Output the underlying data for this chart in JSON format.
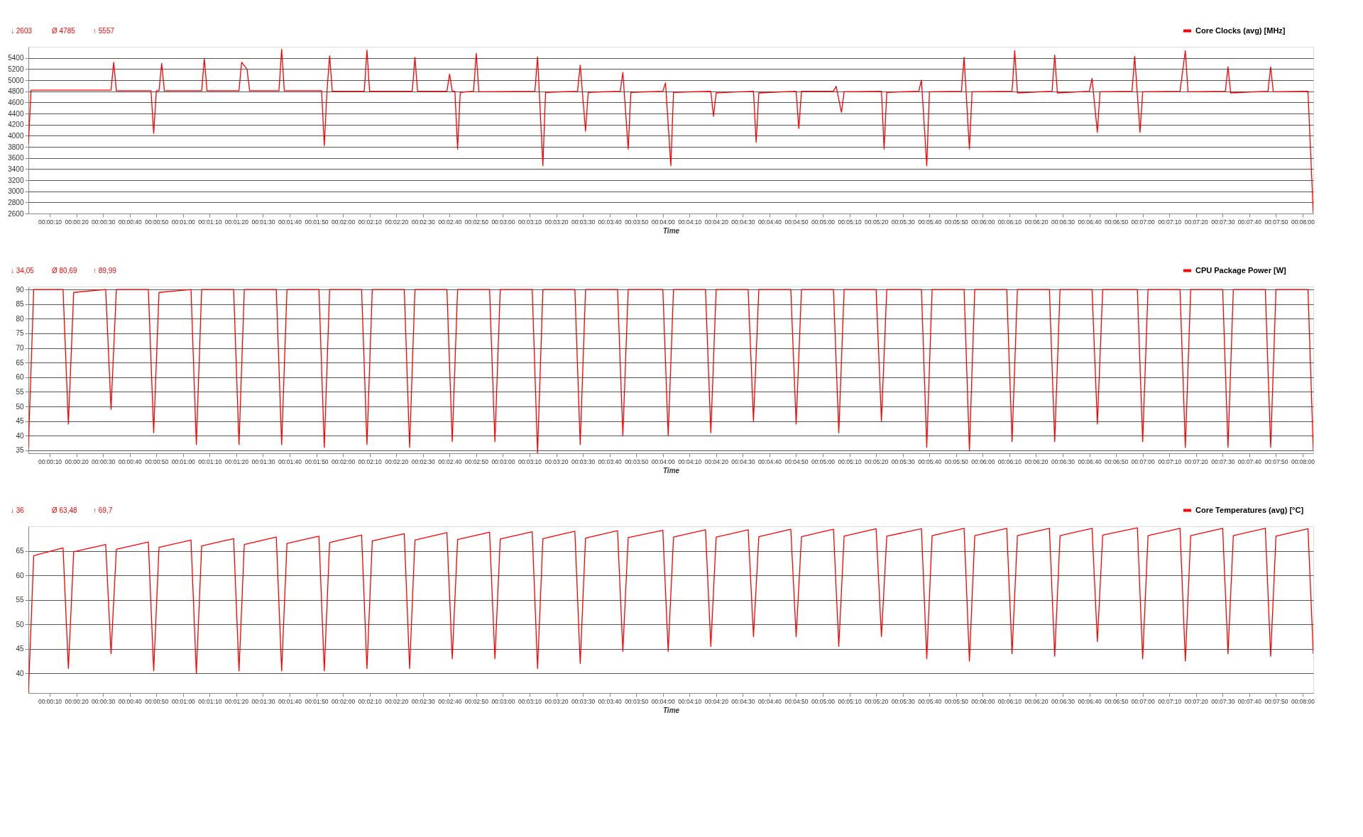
{
  "chart_data": [
    {
      "type": "line",
      "xlabel": "Time",
      "annotations": [
        "↓ 2603",
        "Ø 4785",
        "↑ 5557"
      ],
      "legend": "top right",
      "grid": "y",
      "xlim": [
        2,
        484
      ],
      "ylim": [
        2600,
        5600
      ],
      "yticks": [
        2600,
        2800,
        3000,
        3200,
        3400,
        3600,
        3800,
        4000,
        4200,
        4400,
        4600,
        4800,
        5000,
        5200,
        5400
      ],
      "xticks": [
        {
          "value": 10,
          "label": "00:00:10"
        },
        {
          "value": 20,
          "label": "00:00:20"
        },
        {
          "value": 30,
          "label": "00:00:30"
        },
        {
          "value": 40,
          "label": "00:00:40"
        },
        {
          "value": 50,
          "label": "00:00:50"
        },
        {
          "value": 60,
          "label": "00:01:00"
        },
        {
          "value": 70,
          "label": "00:01:10"
        },
        {
          "value": 80,
          "label": "00:01:20"
        },
        {
          "value": 90,
          "label": "00:01:30"
        },
        {
          "value": 100,
          "label": "00:01:40"
        },
        {
          "value": 110,
          "label": "00:01:50"
        },
        {
          "value": 120,
          "label": "00:02:00"
        },
        {
          "value": 130,
          "label": "00:02:10"
        },
        {
          "value": 140,
          "label": "00:02:20"
        },
        {
          "value": 150,
          "label": "00:02:30"
        },
        {
          "value": 160,
          "label": "00:02:40"
        },
        {
          "value": 170,
          "label": "00:02:50"
        },
        {
          "value": 180,
          "label": "00:03:00"
        },
        {
          "value": 190,
          "label": "00:03:10"
        },
        {
          "value": 200,
          "label": "00:03:20"
        },
        {
          "value": 210,
          "label": "00:03:30"
        },
        {
          "value": 220,
          "label": "00:03:40"
        },
        {
          "value": 230,
          "label": "00:03:50"
        },
        {
          "value": 240,
          "label": "00:04:00"
        },
        {
          "value": 250,
          "label": "00:04:10"
        },
        {
          "value": 260,
          "label": "00:04:20"
        },
        {
          "value": 270,
          "label": "00:04:30"
        },
        {
          "value": 280,
          "label": "00:04:40"
        },
        {
          "value": 290,
          "label": "00:04:50"
        },
        {
          "value": 300,
          "label": "00:05:00"
        },
        {
          "value": 310,
          "label": "00:05:10"
        },
        {
          "value": 320,
          "label": "00:05:20"
        },
        {
          "value": 330,
          "label": "00:05:30"
        },
        {
          "value": 340,
          "label": "00:05:40"
        },
        {
          "value": 350,
          "label": "00:05:50"
        },
        {
          "value": 360,
          "label": "00:06:00"
        },
        {
          "value": 370,
          "label": "00:06:10"
        },
        {
          "value": 380,
          "label": "00:06:20"
        },
        {
          "value": 390,
          "label": "00:06:30"
        },
        {
          "value": 400,
          "label": "00:06:40"
        },
        {
          "value": 410,
          "label": "00:06:50"
        },
        {
          "value": 420,
          "label": "00:07:00"
        },
        {
          "value": 430,
          "label": "00:07:10"
        },
        {
          "value": 440,
          "label": "00:07:20"
        },
        {
          "value": 450,
          "label": "00:07:30"
        },
        {
          "value": 460,
          "label": "00:07:40"
        },
        {
          "value": 470,
          "label": "00:07:50"
        },
        {
          "value": 480,
          "label": "00:08:00"
        }
      ],
      "x": [
        2,
        3,
        33,
        34,
        35,
        48,
        49,
        50,
        51,
        52,
        53,
        67,
        68,
        69,
        81,
        82,
        84,
        85,
        96,
        97,
        98,
        112,
        113,
        114,
        115,
        116,
        128,
        129,
        130,
        146,
        147,
        148,
        159,
        160,
        161,
        162,
        163,
        164,
        169,
        170,
        171,
        192,
        193,
        195,
        196,
        208,
        209,
        211,
        212,
        224,
        225,
        227,
        228,
        240,
        241,
        243,
        244,
        258,
        259,
        260,
        274,
        275,
        276,
        290,
        291,
        292,
        304,
        305,
        307,
        308,
        322,
        323,
        324,
        336,
        337,
        339,
        340,
        352,
        353,
        355,
        356,
        371,
        372,
        373,
        386,
        387,
        388,
        400,
        401,
        403,
        404,
        416,
        417,
        419,
        420,
        434,
        436,
        437,
        451,
        452,
        453,
        467,
        468,
        469,
        482,
        484
      ],
      "series": [
        {
          "name": "Core Clocks (avg) [MHz]",
          "color": "#ff0000",
          "values": [
            3850,
            4820,
            4820,
            5320,
            4810,
            4810,
            4040,
            4810,
            4810,
            5300,
            4810,
            4810,
            5390,
            4810,
            4810,
            5320,
            5200,
            4810,
            4810,
            5557,
            4810,
            4810,
            3820,
            4800,
            5440,
            4800,
            4800,
            5540,
            4800,
            4800,
            5410,
            4800,
            4800,
            5110,
            4800,
            4800,
            3760,
            4780,
            4800,
            5480,
            4790,
            4800,
            5420,
            3460,
            4780,
            4800,
            5270,
            4080,
            4780,
            4800,
            5140,
            3760,
            4780,
            4800,
            4950,
            3460,
            4780,
            4800,
            4350,
            4770,
            4800,
            3880,
            4770,
            4800,
            4130,
            4800,
            4800,
            4890,
            4420,
            4790,
            4800,
            3760,
            4780,
            4800,
            5000,
            3460,
            4790,
            4800,
            5410,
            3760,
            4790,
            4800,
            5530,
            4770,
            4800,
            5450,
            4770,
            4800,
            5030,
            4060,
            4790,
            4800,
            5430,
            4060,
            4790,
            4800,
            5530,
            4790,
            4800,
            5240,
            4770,
            4800,
            5240,
            4790,
            4800,
            2603
          ]
        }
      ]
    },
    {
      "type": "line",
      "xlabel": "Time",
      "annotations": [
        "↓ 34,05",
        "Ø 80,69",
        "↑ 89,99"
      ],
      "legend": "top right",
      "grid": "y",
      "xlim": [
        2,
        484
      ],
      "ylim": [
        34,
        91
      ],
      "yticks": [
        35,
        40,
        45,
        50,
        55,
        60,
        65,
        70,
        75,
        80,
        85,
        90
      ],
      "xticks": [
        {
          "value": 10,
          "label": "00:00:10"
        },
        {
          "value": 20,
          "label": "00:00:20"
        },
        {
          "value": 30,
          "label": "00:00:30"
        },
        {
          "value": 40,
          "label": "00:00:40"
        },
        {
          "value": 50,
          "label": "00:00:50"
        },
        {
          "value": 60,
          "label": "00:01:00"
        },
        {
          "value": 70,
          "label": "00:01:10"
        },
        {
          "value": 80,
          "label": "00:01:20"
        },
        {
          "value": 90,
          "label": "00:01:30"
        },
        {
          "value": 100,
          "label": "00:01:40"
        },
        {
          "value": 110,
          "label": "00:01:50"
        },
        {
          "value": 120,
          "label": "00:02:00"
        },
        {
          "value": 130,
          "label": "00:02:10"
        },
        {
          "value": 140,
          "label": "00:02:20"
        },
        {
          "value": 150,
          "label": "00:02:30"
        },
        {
          "value": 160,
          "label": "00:02:40"
        },
        {
          "value": 170,
          "label": "00:02:50"
        },
        {
          "value": 180,
          "label": "00:03:00"
        },
        {
          "value": 190,
          "label": "00:03:10"
        },
        {
          "value": 200,
          "label": "00:03:20"
        },
        {
          "value": 210,
          "label": "00:03:30"
        },
        {
          "value": 220,
          "label": "00:03:40"
        },
        {
          "value": 230,
          "label": "00:03:50"
        },
        {
          "value": 240,
          "label": "00:04:00"
        },
        {
          "value": 250,
          "label": "00:04:10"
        },
        {
          "value": 260,
          "label": "00:04:20"
        },
        {
          "value": 270,
          "label": "00:04:30"
        },
        {
          "value": 280,
          "label": "00:04:40"
        },
        {
          "value": 290,
          "label": "00:04:50"
        },
        {
          "value": 300,
          "label": "00:05:00"
        },
        {
          "value": 310,
          "label": "00:05:10"
        },
        {
          "value": 320,
          "label": "00:05:20"
        },
        {
          "value": 330,
          "label": "00:05:30"
        },
        {
          "value": 340,
          "label": "00:05:40"
        },
        {
          "value": 350,
          "label": "00:05:50"
        },
        {
          "value": 360,
          "label": "00:06:00"
        },
        {
          "value": 370,
          "label": "00:06:10"
        },
        {
          "value": 380,
          "label": "00:06:20"
        },
        {
          "value": 390,
          "label": "00:06:30"
        },
        {
          "value": 400,
          "label": "00:06:40"
        },
        {
          "value": 410,
          "label": "00:06:50"
        },
        {
          "value": 420,
          "label": "00:07:00"
        },
        {
          "value": 430,
          "label": "00:07:10"
        },
        {
          "value": 440,
          "label": "00:07:20"
        },
        {
          "value": 450,
          "label": "00:07:30"
        },
        {
          "value": 460,
          "label": "00:07:40"
        },
        {
          "value": 470,
          "label": "00:07:50"
        },
        {
          "value": 480,
          "label": "00:08:00"
        }
      ],
      "x": [
        2,
        4,
        15,
        17,
        19,
        31,
        33,
        35,
        47,
        49,
        51,
        63,
        65,
        67,
        79,
        81,
        83,
        95,
        97,
        99,
        111,
        113,
        115,
        127,
        129,
        131,
        143,
        145,
        147,
        159,
        161,
        163,
        175,
        177,
        179,
        191,
        193,
        195,
        207,
        209,
        211,
        223,
        225,
        227,
        240,
        242,
        244,
        256,
        258,
        260,
        272,
        274,
        276,
        288,
        290,
        292,
        304,
        306,
        308,
        320,
        322,
        324,
        337,
        339,
        341,
        353,
        355,
        357,
        369,
        371,
        373,
        385,
        387,
        389,
        401,
        403,
        405,
        418,
        420,
        422,
        434,
        436,
        438,
        450,
        452,
        454,
        466,
        468,
        470,
        482,
        484
      ],
      "series": [
        {
          "name": "CPU Package Power [W]",
          "color": "#ff0000",
          "values": [
            36,
            90,
            90,
            44,
            89,
            90,
            49,
            90,
            90,
            41,
            89,
            90,
            37,
            90,
            90,
            37,
            90,
            90,
            37,
            90,
            90,
            36,
            90,
            90,
            37,
            90,
            90,
            36,
            90,
            90,
            38,
            90,
            90,
            38,
            90,
            90,
            34,
            90,
            90,
            37,
            90,
            90,
            40,
            90,
            90,
            40,
            90,
            90,
            41,
            90,
            90,
            45,
            90,
            90,
            44,
            90,
            90,
            41,
            90,
            90,
            45,
            90,
            90,
            36,
            90,
            90,
            35,
            90,
            90,
            38,
            90,
            90,
            38,
            90,
            90,
            44,
            90,
            90,
            38,
            90,
            90,
            36,
            90,
            90,
            36,
            90,
            90,
            36,
            90,
            90,
            35
          ]
        }
      ]
    },
    {
      "type": "line",
      "xlabel": "Time",
      "annotations": [
        "↓ 36",
        "Ø 63,48",
        "↑ 69,7"
      ],
      "legend": "top right",
      "grid": "y",
      "xlim": [
        2,
        484
      ],
      "ylim": [
        36,
        70
      ],
      "yticks": [
        40,
        45,
        50,
        55,
        60,
        65
      ],
      "xticks": [
        {
          "value": 10,
          "label": "00:00:10"
        },
        {
          "value": 20,
          "label": "00:00:20"
        },
        {
          "value": 30,
          "label": "00:00:30"
        },
        {
          "value": 40,
          "label": "00:00:40"
        },
        {
          "value": 50,
          "label": "00:00:50"
        },
        {
          "value": 60,
          "label": "00:01:00"
        },
        {
          "value": 70,
          "label": "00:01:10"
        },
        {
          "value": 80,
          "label": "00:01:20"
        },
        {
          "value": 90,
          "label": "00:01:30"
        },
        {
          "value": 100,
          "label": "00:01:40"
        },
        {
          "value": 110,
          "label": "00:01:50"
        },
        {
          "value": 120,
          "label": "00:02:00"
        },
        {
          "value": 130,
          "label": "00:02:10"
        },
        {
          "value": 140,
          "label": "00:02:20"
        },
        {
          "value": 150,
          "label": "00:02:30"
        },
        {
          "value": 160,
          "label": "00:02:40"
        },
        {
          "value": 170,
          "label": "00:02:50"
        },
        {
          "value": 180,
          "label": "00:03:00"
        },
        {
          "value": 190,
          "label": "00:03:10"
        },
        {
          "value": 200,
          "label": "00:03:20"
        },
        {
          "value": 210,
          "label": "00:03:30"
        },
        {
          "value": 220,
          "label": "00:03:40"
        },
        {
          "value": 230,
          "label": "00:03:50"
        },
        {
          "value": 240,
          "label": "00:04:00"
        },
        {
          "value": 250,
          "label": "00:04:10"
        },
        {
          "value": 260,
          "label": "00:04:20"
        },
        {
          "value": 270,
          "label": "00:04:30"
        },
        {
          "value": 280,
          "label": "00:04:40"
        },
        {
          "value": 290,
          "label": "00:04:50"
        },
        {
          "value": 300,
          "label": "00:05:00"
        },
        {
          "value": 310,
          "label": "00:05:10"
        },
        {
          "value": 320,
          "label": "00:05:20"
        },
        {
          "value": 330,
          "label": "00:05:30"
        },
        {
          "value": 340,
          "label": "00:05:40"
        },
        {
          "value": 350,
          "label": "00:05:50"
        },
        {
          "value": 360,
          "label": "00:06:00"
        },
        {
          "value": 370,
          "label": "00:06:10"
        },
        {
          "value": 380,
          "label": "00:06:20"
        },
        {
          "value": 390,
          "label": "00:06:30"
        },
        {
          "value": 400,
          "label": "00:06:40"
        },
        {
          "value": 410,
          "label": "00:06:50"
        },
        {
          "value": 420,
          "label": "00:07:00"
        },
        {
          "value": 430,
          "label": "00:07:10"
        },
        {
          "value": 440,
          "label": "00:07:20"
        },
        {
          "value": 450,
          "label": "00:07:30"
        },
        {
          "value": 460,
          "label": "00:07:40"
        },
        {
          "value": 470,
          "label": "00:07:50"
        },
        {
          "value": 480,
          "label": "00:08:00"
        }
      ],
      "x": [
        2,
        4,
        15,
        17,
        19,
        31,
        33,
        35,
        47,
        49,
        51,
        63,
        65,
        67,
        79,
        81,
        83,
        95,
        97,
        99,
        111,
        113,
        115,
        127,
        129,
        131,
        143,
        145,
        147,
        159,
        161,
        163,
        175,
        177,
        179,
        191,
        193,
        195,
        207,
        209,
        211,
        223,
        225,
        227,
        240,
        242,
        244,
        256,
        258,
        260,
        272,
        274,
        276,
        288,
        290,
        292,
        304,
        306,
        308,
        320,
        322,
        324,
        337,
        339,
        341,
        353,
        355,
        357,
        369,
        371,
        373,
        385,
        387,
        389,
        401,
        403,
        405,
        418,
        420,
        422,
        434,
        436,
        438,
        450,
        452,
        454,
        466,
        468,
        470,
        482,
        484
      ],
      "series": [
        {
          "name": "Core Temperatures (avg) [°C]",
          "color": "#ff0000",
          "values": [
            36,
            64,
            65.6,
            41,
            64.8,
            66.3,
            44,
            65.3,
            66.8,
            40.5,
            65.7,
            67.2,
            40,
            66,
            67.5,
            40.5,
            66.3,
            67.8,
            40.5,
            66.5,
            68,
            40.5,
            66.7,
            68.2,
            41,
            67,
            68.5,
            41,
            67.2,
            68.7,
            43,
            67.3,
            68.8,
            43,
            67.4,
            68.9,
            41,
            67.5,
            69,
            42,
            67.6,
            69.1,
            44.5,
            67.7,
            69.2,
            44.5,
            67.8,
            69.3,
            45.5,
            67.8,
            69.3,
            47.5,
            67.9,
            69.4,
            47.5,
            67.9,
            69.4,
            45.5,
            68,
            69.5,
            47.5,
            68,
            69.5,
            43,
            68.1,
            69.6,
            42.5,
            68.1,
            69.6,
            44,
            68.1,
            69.6,
            43.5,
            68.1,
            69.6,
            46.5,
            68.2,
            69.7,
            43,
            68.1,
            69.6,
            42.5,
            68.1,
            69.6,
            44,
            68.1,
            69.6,
            43.5,
            68,
            69.5,
            44
          ]
        }
      ]
    }
  ]
}
